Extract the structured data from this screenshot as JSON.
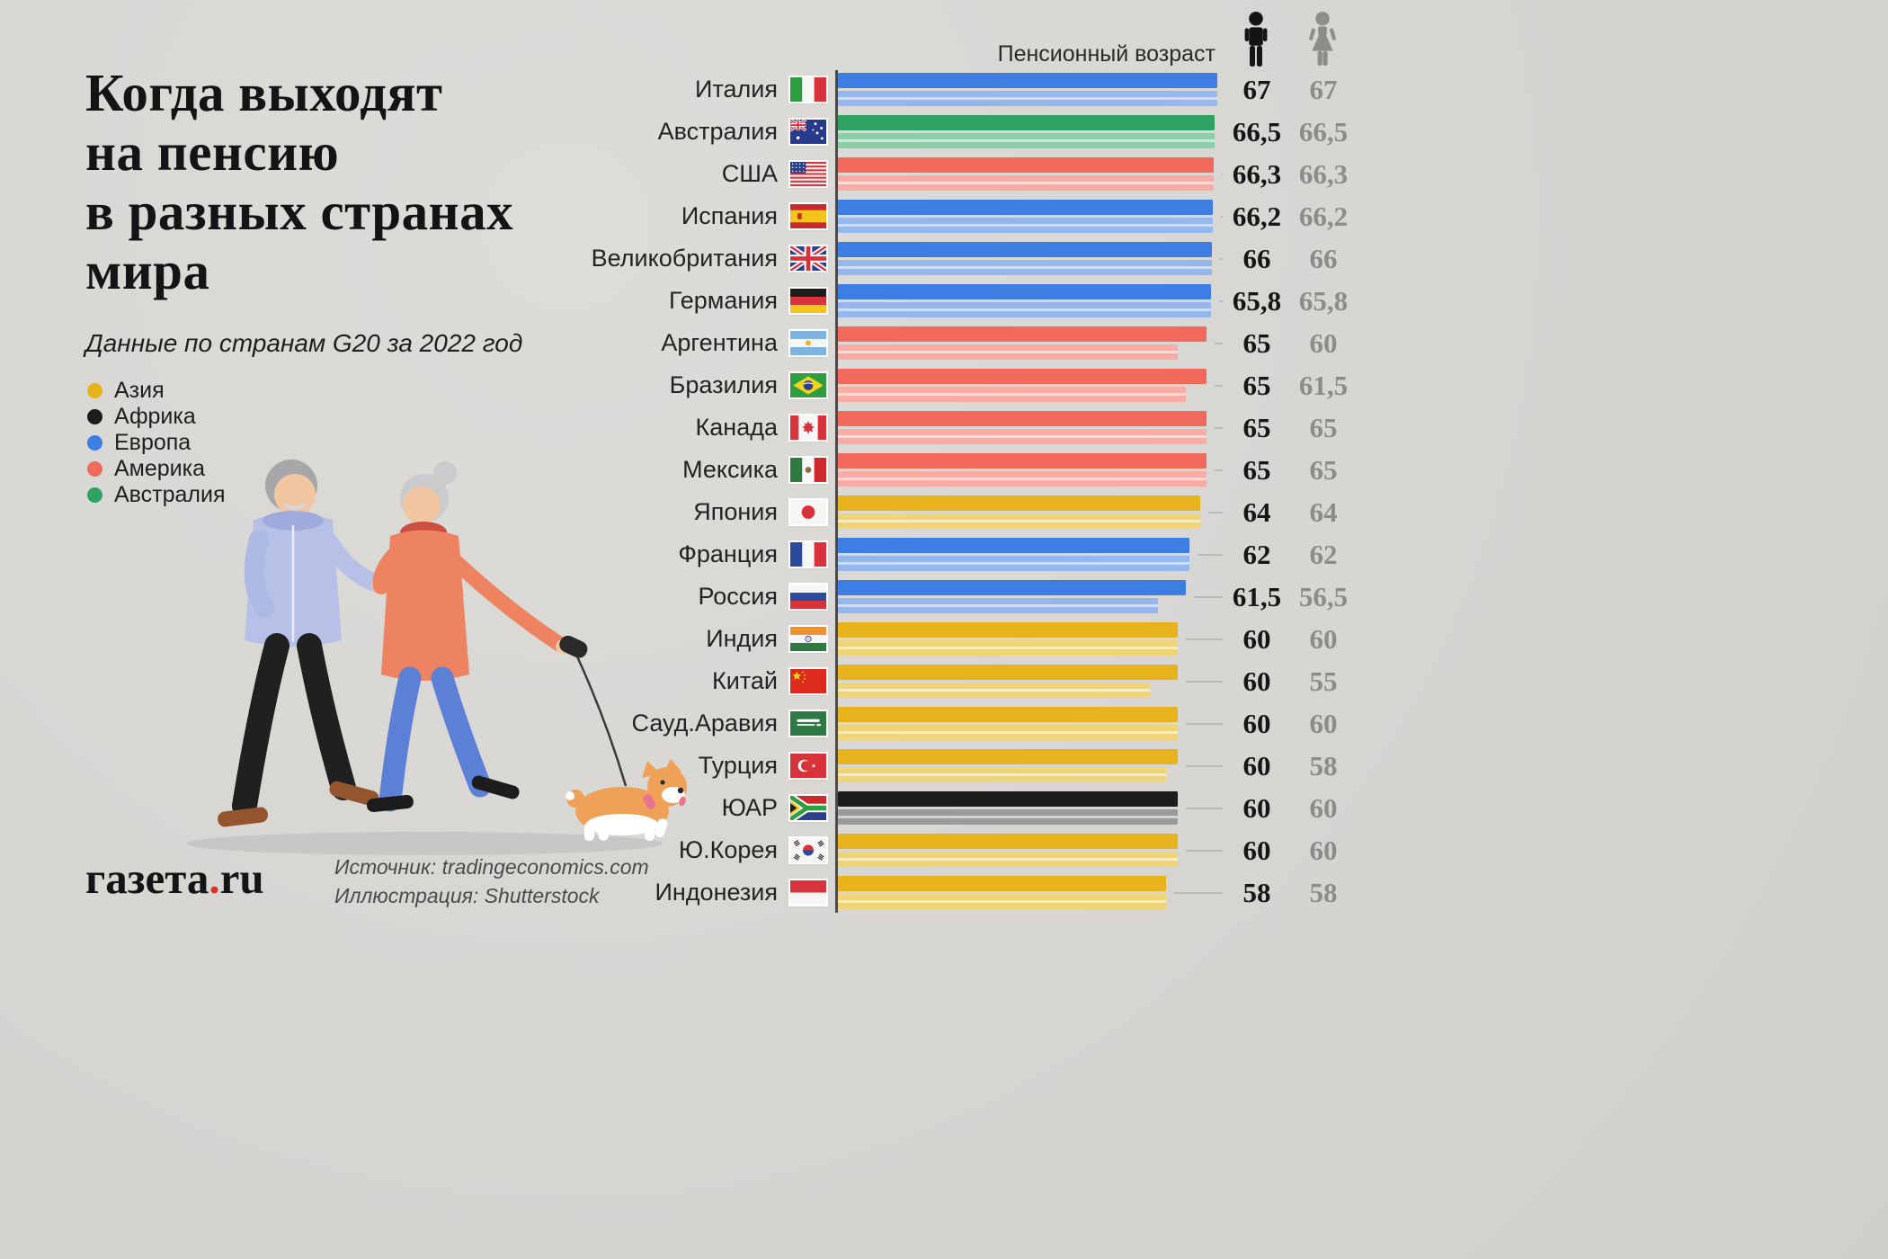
{
  "header": {
    "title_lines": [
      "Когда выходят",
      "на пенсию",
      "в разных странах",
      "мира"
    ],
    "subtitle": "Данные по странам G20 за 2022 год"
  },
  "legend": {
    "items": [
      {
        "label": "Азия",
        "color": "#e7b31d"
      },
      {
        "label": "Африка",
        "color": "#1d1d1d"
      },
      {
        "label": "Европа",
        "color": "#3e7de2"
      },
      {
        "label": "Америка",
        "color": "#f26a5c"
      },
      {
        "label": "Австралия",
        "color": "#2ea163"
      }
    ]
  },
  "brand": {
    "name": "газета",
    "dot": ".",
    "tld": "ru"
  },
  "source": {
    "line1": "Источник: tradingeconomics.com",
    "line2": "Иллюстрация: Shutterstock"
  },
  "chart_data": {
    "type": "bar",
    "orientation": "horizontal",
    "column_header": "Пенсионный возраст",
    "series": [
      {
        "name": "мужчины",
        "icon": "man-icon"
      },
      {
        "name": "женщины",
        "icon": "woman-icon"
      }
    ],
    "axis": {
      "min": 0,
      "max": 67
    },
    "region_colors": {
      "Азия": {
        "men": "#e7b31d",
        "women": "#f0d578"
      },
      "Африка": {
        "men": "#1d1d1d",
        "women": "#9a9a9a"
      },
      "Европа": {
        "men": "#3e7de2",
        "women": "#95b7ee"
      },
      "Америка": {
        "men": "#f26a5c",
        "women": "#f8aca3"
      },
      "Австралия": {
        "men": "#2ea163",
        "women": "#8fcdaa"
      }
    },
    "rows": [
      {
        "country": "Италия",
        "flag": "it",
        "region": "Европа",
        "men": 67,
        "women": 67,
        "men_label": "67",
        "women_label": "67"
      },
      {
        "country": "Австралия",
        "flag": "au",
        "region": "Австралия",
        "men": 66.5,
        "women": 66.5,
        "men_label": "66,5",
        "women_label": "66,5"
      },
      {
        "country": "США",
        "flag": "us",
        "region": "Америка",
        "men": 66.3,
        "women": 66.3,
        "men_label": "66,3",
        "women_label": "66,3"
      },
      {
        "country": "Испания",
        "flag": "es",
        "region": "Европа",
        "men": 66.2,
        "women": 66.2,
        "men_label": "66,2",
        "women_label": "66,2"
      },
      {
        "country": "Великобритания",
        "flag": "gb",
        "region": "Европа",
        "men": 66,
        "women": 66,
        "men_label": "66",
        "women_label": "66"
      },
      {
        "country": "Германия",
        "flag": "de",
        "region": "Европа",
        "men": 65.8,
        "women": 65.8,
        "men_label": "65,8",
        "women_label": "65,8"
      },
      {
        "country": "Аргентина",
        "flag": "ar",
        "region": "Америка",
        "men": 65,
        "women": 60,
        "men_label": "65",
        "women_label": "60"
      },
      {
        "country": "Бразилия",
        "flag": "br",
        "region": "Америка",
        "men": 65,
        "women": 61.5,
        "men_label": "65",
        "women_label": "61,5"
      },
      {
        "country": "Канада",
        "flag": "ca",
        "region": "Америка",
        "men": 65,
        "women": 65,
        "men_label": "65",
        "women_label": "65"
      },
      {
        "country": "Мексика",
        "flag": "mx",
        "region": "Америка",
        "men": 65,
        "women": 65,
        "men_label": "65",
        "women_label": "65"
      },
      {
        "country": "Япония",
        "flag": "jp",
        "region": "Азия",
        "men": 64,
        "women": 64,
        "men_label": "64",
        "women_label": "64"
      },
      {
        "country": "Франция",
        "flag": "fr",
        "region": "Европа",
        "men": 62,
        "women": 62,
        "men_label": "62",
        "women_label": "62"
      },
      {
        "country": "Россия",
        "flag": "ru",
        "region": "Европа",
        "men": 61.5,
        "women": 56.5,
        "men_label": "61,5",
        "women_label": "56,5"
      },
      {
        "country": "Индия",
        "flag": "in",
        "region": "Азия",
        "men": 60,
        "women": 60,
        "men_label": "60",
        "women_label": "60"
      },
      {
        "country": "Китай",
        "flag": "cn",
        "region": "Азия",
        "men": 60,
        "women": 55,
        "men_label": "60",
        "women_label": "55"
      },
      {
        "country": "Сауд.Аравия",
        "flag": "sa",
        "region": "Азия",
        "men": 60,
        "women": 60,
        "men_label": "60",
        "women_label": "60"
      },
      {
        "country": "Турция",
        "flag": "tr",
        "region": "Азия",
        "men": 60,
        "women": 58,
        "men_label": "60",
        "women_label": "58"
      },
      {
        "country": "ЮАР",
        "flag": "za",
        "region": "Африка",
        "men": 60,
        "women": 60,
        "men_label": "60",
        "women_label": "60"
      },
      {
        "country": "Ю.Корея",
        "flag": "kr",
        "region": "Азия",
        "men": 60,
        "women": 60,
        "men_label": "60",
        "women_label": "60"
      },
      {
        "country": "Индонезия",
        "flag": "id",
        "region": "Азия",
        "men": 58,
        "women": 58,
        "men_label": "58",
        "women_label": "58"
      }
    ]
  }
}
